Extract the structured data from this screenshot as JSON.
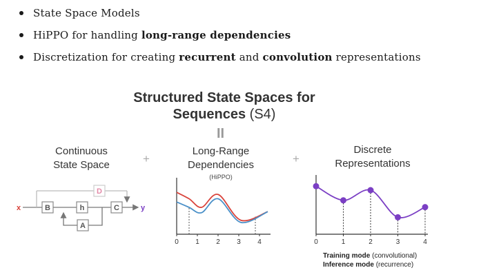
{
  "bullets": [
    {
      "pre": "State Space Models",
      "bold": "",
      "mid": "",
      "bold2": "",
      "post": ""
    },
    {
      "pre": "HiPPO for handling ",
      "bold": "long-range dependencies",
      "mid": "",
      "bold2": "",
      "post": ""
    },
    {
      "pre": "Discretization for creating ",
      "bold": "recurrent",
      "mid": " and ",
      "bold2": "convolution",
      "post": " representations"
    }
  ],
  "title": {
    "line1": "Structured State Spaces for",
    "line2_bold": "Sequences",
    "line2_rest": " (S4)"
  },
  "equals": "II",
  "plus": "+",
  "panels": {
    "continuous": {
      "line1": "Continuous",
      "line2": "State Space"
    },
    "longrange": {
      "line1": "Long-Range",
      "line2": "Dependencies",
      "sub": "(HiPPO)"
    },
    "discrete": {
      "line1": "Discrete",
      "line2": "Representations"
    }
  },
  "block_diagram": {
    "input": "x",
    "output": "y",
    "B": "B",
    "h": "h",
    "C": "C",
    "A": "A",
    "D": "D"
  },
  "colors": {
    "accent_red": "#d9433b",
    "accent_blue": "#4a90c8",
    "accent_purple": "#7b3fc4",
    "box_gray": "#888888",
    "pink": "#e38aa8"
  },
  "chart_data": [
    {
      "type": "line",
      "xticks": [
        "0",
        "1",
        "2",
        "3",
        "4"
      ],
      "xlim": [
        0,
        4.4
      ],
      "ylim": [
        0,
        1
      ],
      "series": [
        {
          "x": [
            0,
            0.6,
            1.2,
            2,
            3.1,
            4.4
          ],
          "values": [
            0.78,
            0.66,
            0.5,
            0.74,
            0.26,
            0.42
          ]
        },
        {
          "x": [
            0,
            0.6,
            1.2,
            2,
            3.1,
            4.4
          ],
          "values": [
            0.6,
            0.5,
            0.4,
            0.66,
            0.22,
            0.42
          ]
        }
      ],
      "dashed_x": [
        0.6,
        3.8
      ]
    },
    {
      "type": "line",
      "xticks": [
        "0",
        "1",
        "2",
        "3",
        "4"
      ],
      "xlim": [
        0,
        4
      ],
      "ylim": [
        0,
        1
      ],
      "series": [
        {
          "x": [
            0,
            1,
            2,
            3,
            4
          ],
          "values": [
            0.85,
            0.6,
            0.78,
            0.3,
            0.48
          ]
        }
      ]
    }
  ],
  "legend": {
    "line1_bold": "Training mode",
    "line1_rest": " (convolutional)",
    "line2_bold": "Inference mode",
    "line2_rest": " (recurrence)"
  }
}
